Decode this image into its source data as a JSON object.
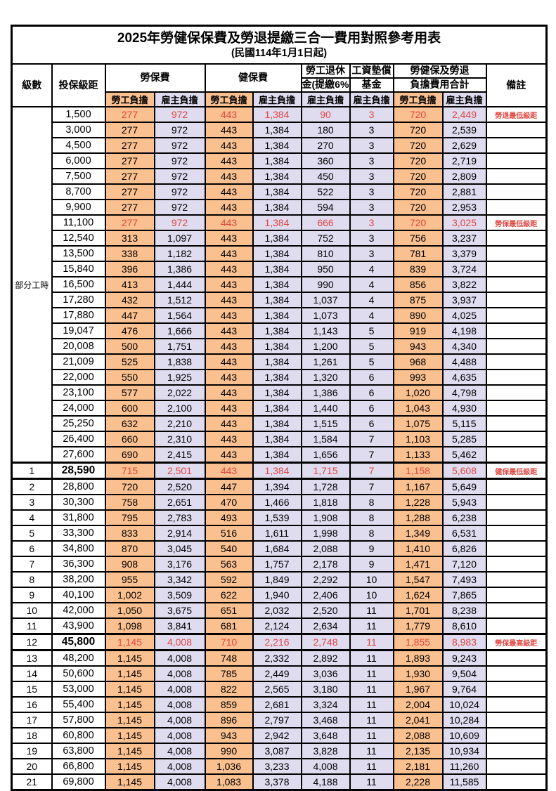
{
  "title": "2025年勞健保保費及勞退提繳三合一費用對照參考用表",
  "subtitle": "(民國114年1月1日起)",
  "header": {
    "level": "級數",
    "bracket": "投保級距",
    "labor_group": "勞保費",
    "health_group": "健保費",
    "pension_line1": "勞工退休",
    "pension_line2": "金(提繳6%)",
    "wage_fund_line1": "工資墊償",
    "wage_fund_line2": "基金",
    "total_line1": "勞健保及勞退",
    "total_line2": "負擔費用合計",
    "employee": "勞工負擔",
    "employer": "雇主負擔",
    "remark": "備註"
  },
  "part_time_label": "部分工時",
  "part_time_rowspan": 23,
  "colors": {
    "employee_bg": "#FAC090",
    "employer_bg": "#DFDCF0",
    "highlight_red": "#E2453F",
    "grid": "#000000"
  },
  "rows": [
    {
      "level": "",
      "bracket": "1,500",
      "values": [
        "277",
        "972",
        "443",
        "1,384",
        "90",
        "3",
        "720",
        "2,449"
      ],
      "note": "勞退最低級距",
      "red": true,
      "em": false
    },
    {
      "level": "",
      "bracket": "3,000",
      "values": [
        "277",
        "972",
        "443",
        "1,384",
        "180",
        "3",
        "720",
        "2,539"
      ],
      "note": "",
      "red": false,
      "em": false
    },
    {
      "level": "",
      "bracket": "4,500",
      "values": [
        "277",
        "972",
        "443",
        "1,384",
        "270",
        "3",
        "720",
        "2,629"
      ],
      "note": "",
      "red": false,
      "em": false
    },
    {
      "level": "",
      "bracket": "6,000",
      "values": [
        "277",
        "972",
        "443",
        "1,384",
        "360",
        "3",
        "720",
        "2,719"
      ],
      "note": "",
      "red": false,
      "em": false
    },
    {
      "level": "",
      "bracket": "7,500",
      "values": [
        "277",
        "972",
        "443",
        "1,384",
        "450",
        "3",
        "720",
        "2,809"
      ],
      "note": "",
      "red": false,
      "em": false
    },
    {
      "level": "",
      "bracket": "8,700",
      "values": [
        "277",
        "972",
        "443",
        "1,384",
        "522",
        "3",
        "720",
        "2,881"
      ],
      "note": "",
      "red": false,
      "em": false
    },
    {
      "level": "",
      "bracket": "9,900",
      "values": [
        "277",
        "972",
        "443",
        "1,384",
        "594",
        "3",
        "720",
        "2,953"
      ],
      "note": "",
      "red": false,
      "em": false
    },
    {
      "level": "",
      "bracket": "11,100",
      "values": [
        "277",
        "972",
        "443",
        "1,384",
        "666",
        "3",
        "720",
        "3,025"
      ],
      "note": "勞保最低級距",
      "red": true,
      "em": false
    },
    {
      "level": "",
      "bracket": "12,540",
      "values": [
        "313",
        "1,097",
        "443",
        "1,384",
        "752",
        "3",
        "756",
        "3,237"
      ],
      "note": "",
      "red": false,
      "em": false
    },
    {
      "level": "",
      "bracket": "13,500",
      "values": [
        "338",
        "1,182",
        "443",
        "1,384",
        "810",
        "3",
        "781",
        "3,379"
      ],
      "note": "",
      "red": false,
      "em": false
    },
    {
      "level": "",
      "bracket": "15,840",
      "values": [
        "396",
        "1,386",
        "443",
        "1,384",
        "950",
        "4",
        "839",
        "3,724"
      ],
      "note": "",
      "red": false,
      "em": false
    },
    {
      "level": "",
      "bracket": "16,500",
      "values": [
        "413",
        "1,444",
        "443",
        "1,384",
        "990",
        "4",
        "856",
        "3,822"
      ],
      "note": "",
      "red": false,
      "em": false
    },
    {
      "level": "",
      "bracket": "17,280",
      "values": [
        "432",
        "1,512",
        "443",
        "1,384",
        "1,037",
        "4",
        "875",
        "3,937"
      ],
      "note": "",
      "red": false,
      "em": false
    },
    {
      "level": "",
      "bracket": "17,880",
      "values": [
        "447",
        "1,564",
        "443",
        "1,384",
        "1,073",
        "4",
        "890",
        "4,025"
      ],
      "note": "",
      "red": false,
      "em": false
    },
    {
      "level": "",
      "bracket": "19,047",
      "values": [
        "476",
        "1,666",
        "443",
        "1,384",
        "1,143",
        "5",
        "919",
        "4,198"
      ],
      "note": "",
      "red": false,
      "em": false
    },
    {
      "level": "",
      "bracket": "20,008",
      "values": [
        "500",
        "1,751",
        "443",
        "1,384",
        "1,200",
        "5",
        "943",
        "4,340"
      ],
      "note": "",
      "red": false,
      "em": false
    },
    {
      "level": "",
      "bracket": "21,009",
      "values": [
        "525",
        "1,838",
        "443",
        "1,384",
        "1,261",
        "5",
        "968",
        "4,488"
      ],
      "note": "",
      "red": false,
      "em": false
    },
    {
      "level": "",
      "bracket": "22,000",
      "values": [
        "550",
        "1,925",
        "443",
        "1,384",
        "1,320",
        "6",
        "993",
        "4,635"
      ],
      "note": "",
      "red": false,
      "em": false
    },
    {
      "level": "",
      "bracket": "23,100",
      "values": [
        "577",
        "2,022",
        "443",
        "1,384",
        "1,386",
        "6",
        "1,020",
        "4,798"
      ],
      "note": "",
      "red": false,
      "em": false
    },
    {
      "level": "",
      "bracket": "24,000",
      "values": [
        "600",
        "2,100",
        "443",
        "1,384",
        "1,440",
        "6",
        "1,043",
        "4,930"
      ],
      "note": "",
      "red": false,
      "em": false
    },
    {
      "level": "",
      "bracket": "25,250",
      "values": [
        "632",
        "2,210",
        "443",
        "1,384",
        "1,515",
        "6",
        "1,075",
        "5,115"
      ],
      "note": "",
      "red": false,
      "em": false
    },
    {
      "level": "",
      "bracket": "26,400",
      "values": [
        "660",
        "2,310",
        "443",
        "1,384",
        "1,584",
        "7",
        "1,103",
        "5,285"
      ],
      "note": "",
      "red": false,
      "em": false
    },
    {
      "level": "",
      "bracket": "27,600",
      "values": [
        "690",
        "2,415",
        "443",
        "1,384",
        "1,656",
        "7",
        "1,133",
        "5,462"
      ],
      "note": "",
      "red": false,
      "em": false
    },
    {
      "level": "1",
      "bracket": "28,590",
      "values": [
        "715",
        "2,501",
        "443",
        "1,384",
        "1,715",
        "7",
        "1,158",
        "5,608"
      ],
      "note": "健保最低級距",
      "red": true,
      "em": true
    },
    {
      "level": "2",
      "bracket": "28,800",
      "values": [
        "720",
        "2,520",
        "447",
        "1,394",
        "1,728",
        "7",
        "1,167",
        "5,649"
      ],
      "note": "",
      "red": false,
      "em": false
    },
    {
      "level": "3",
      "bracket": "30,300",
      "values": [
        "758",
        "2,651",
        "470",
        "1,466",
        "1,818",
        "8",
        "1,228",
        "5,943"
      ],
      "note": "",
      "red": false,
      "em": false
    },
    {
      "level": "4",
      "bracket": "31,800",
      "values": [
        "795",
        "2,783",
        "493",
        "1,539",
        "1,908",
        "8",
        "1,288",
        "6,238"
      ],
      "note": "",
      "red": false,
      "em": false
    },
    {
      "level": "5",
      "bracket": "33,300",
      "values": [
        "833",
        "2,914",
        "516",
        "1,611",
        "1,998",
        "8",
        "1,349",
        "6,531"
      ],
      "note": "",
      "red": false,
      "em": false
    },
    {
      "level": "6",
      "bracket": "34,800",
      "values": [
        "870",
        "3,045",
        "540",
        "1,684",
        "2,088",
        "9",
        "1,410",
        "6,826"
      ],
      "note": "",
      "red": false,
      "em": false
    },
    {
      "level": "7",
      "bracket": "36,300",
      "values": [
        "908",
        "3,176",
        "563",
        "1,757",
        "2,178",
        "9",
        "1,471",
        "7,120"
      ],
      "note": "",
      "red": false,
      "em": false
    },
    {
      "level": "8",
      "bracket": "38,200",
      "values": [
        "955",
        "3,342",
        "592",
        "1,849",
        "2,292",
        "10",
        "1,547",
        "7,493"
      ],
      "note": "",
      "red": false,
      "em": false
    },
    {
      "level": "9",
      "bracket": "40,100",
      "values": [
        "1,002",
        "3,509",
        "622",
        "1,940",
        "2,406",
        "10",
        "1,624",
        "7,865"
      ],
      "note": "",
      "red": false,
      "em": false
    },
    {
      "level": "10",
      "bracket": "42,000",
      "values": [
        "1,050",
        "3,675",
        "651",
        "2,032",
        "2,520",
        "11",
        "1,701",
        "8,238"
      ],
      "note": "",
      "red": false,
      "em": false
    },
    {
      "level": "11",
      "bracket": "43,900",
      "values": [
        "1,098",
        "3,841",
        "681",
        "2,124",
        "2,634",
        "11",
        "1,779",
        "8,610"
      ],
      "note": "",
      "red": false,
      "em": false
    },
    {
      "level": "12",
      "bracket": "45,800",
      "values": [
        "1,145",
        "4,008",
        "710",
        "2,216",
        "2,748",
        "11",
        "1,855",
        "8,983"
      ],
      "note": "勞保最高級距",
      "red": true,
      "em": true
    },
    {
      "level": "13",
      "bracket": "48,200",
      "values": [
        "1,145",
        "4,008",
        "748",
        "2,332",
        "2,892",
        "11",
        "1,893",
        "9,243"
      ],
      "note": "",
      "red": false,
      "em": false
    },
    {
      "level": "14",
      "bracket": "50,600",
      "values": [
        "1,145",
        "4,008",
        "785",
        "2,449",
        "3,036",
        "11",
        "1,930",
        "9,504"
      ],
      "note": "",
      "red": false,
      "em": false
    },
    {
      "level": "15",
      "bracket": "53,000",
      "values": [
        "1,145",
        "4,008",
        "822",
        "2,565",
        "3,180",
        "11",
        "1,967",
        "9,764"
      ],
      "note": "",
      "red": false,
      "em": false
    },
    {
      "level": "16",
      "bracket": "55,400",
      "values": [
        "1,145",
        "4,008",
        "859",
        "2,681",
        "3,324",
        "11",
        "2,004",
        "10,024"
      ],
      "note": "",
      "red": false,
      "em": false
    },
    {
      "level": "17",
      "bracket": "57,800",
      "values": [
        "1,145",
        "4,008",
        "896",
        "2,797",
        "3,468",
        "11",
        "2,041",
        "10,284"
      ],
      "note": "",
      "red": false,
      "em": false
    },
    {
      "level": "18",
      "bracket": "60,800",
      "values": [
        "1,145",
        "4,008",
        "943",
        "2,942",
        "3,648",
        "11",
        "2,088",
        "10,609"
      ],
      "note": "",
      "red": false,
      "em": false
    },
    {
      "level": "19",
      "bracket": "63,800",
      "values": [
        "1,145",
        "4,008",
        "990",
        "3,087",
        "3,828",
        "11",
        "2,135",
        "10,934"
      ],
      "note": "",
      "red": false,
      "em": false
    },
    {
      "level": "20",
      "bracket": "66,800",
      "values": [
        "1,145",
        "4,008",
        "1,036",
        "3,233",
        "4,008",
        "11",
        "2,181",
        "11,260"
      ],
      "note": "",
      "red": false,
      "em": false
    },
    {
      "level": "21",
      "bracket": "69,800",
      "values": [
        "1,145",
        "4,008",
        "1,083",
        "3,378",
        "4,188",
        "11",
        "2,228",
        "11,585"
      ],
      "note": "",
      "red": false,
      "em": false
    }
  ]
}
